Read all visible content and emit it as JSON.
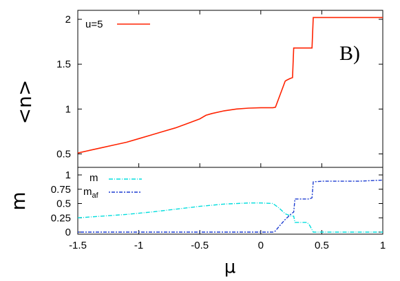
{
  "colors": {
    "n_line": "#ff2200",
    "m_line": "#00dddd",
    "maf_line": "#1a3ad0",
    "frame": "#000000"
  },
  "chart_data": [
    {
      "type": "line",
      "panel_tag": "B)",
      "ylabel": "<n>",
      "xlim": [
        -1.5,
        1
      ],
      "ylim": [
        0.35,
        2.1
      ],
      "yticks": [
        0.5,
        1,
        1.5,
        2
      ],
      "ytick_labels": [
        "0.5",
        "1",
        "1.5",
        "2"
      ],
      "legend": "top-left",
      "grid": false,
      "series": [
        {
          "name": "u=5",
          "color": "#ff2200",
          "x": [
            -1.5,
            -1.4,
            -1.3,
            -1.2,
            -1.1,
            -1.0,
            -0.9,
            -0.8,
            -0.7,
            -0.6,
            -0.5,
            -0.45,
            -0.4,
            -0.3,
            -0.2,
            -0.1,
            0.0,
            0.05,
            0.1,
            0.12,
            0.2,
            0.21,
            0.24,
            0.26,
            0.27,
            0.37,
            0.38,
            0.42,
            0.43,
            1.0
          ],
          "y": [
            0.51,
            0.54,
            0.57,
            0.6,
            0.63,
            0.67,
            0.71,
            0.75,
            0.79,
            0.84,
            0.89,
            0.93,
            0.95,
            0.98,
            1.0,
            1.01,
            1.015,
            1.015,
            1.015,
            1.02,
            1.31,
            1.32,
            1.34,
            1.35,
            1.68,
            1.68,
            1.68,
            1.68,
            2.02,
            2.02
          ]
        }
      ]
    },
    {
      "type": "line",
      "xlabel": "μ",
      "ylabel": "m",
      "xlim": [
        -1.5,
        1
      ],
      "ylim": [
        0,
        1
      ],
      "xticks": [
        -1.5,
        -1,
        -0.5,
        0,
        0.5,
        1
      ],
      "xtick_labels": [
        "-1.5",
        "-1",
        "-0.5",
        "0",
        "0.5",
        "1"
      ],
      "yticks": [
        0,
        0.25,
        0.5,
        0.75,
        1
      ],
      "ytick_labels": [
        "0",
        "0.25",
        "0.5",
        "0.75",
        "1"
      ],
      "legend": "top-left",
      "grid": false,
      "series": [
        {
          "name": "m",
          "color": "#00dddd",
          "x": [
            -1.5,
            -1.3,
            -1.1,
            -0.9,
            -0.7,
            -0.5,
            -0.3,
            -0.1,
            0.0,
            0.1,
            0.15,
            0.2,
            0.25,
            0.27,
            0.28,
            0.3,
            0.38,
            0.4,
            0.43,
            1.0
          ],
          "y": [
            0.25,
            0.28,
            0.31,
            0.35,
            0.4,
            0.45,
            0.49,
            0.51,
            0.51,
            0.5,
            0.42,
            0.32,
            0.28,
            0.28,
            0.17,
            0.17,
            0.17,
            0.12,
            0.0,
            0.0
          ]
        },
        {
          "name": "m_af",
          "color": "#1a3ad0",
          "x": [
            -1.5,
            0.1,
            0.12,
            0.15,
            0.2,
            0.25,
            0.27,
            0.28,
            0.3,
            0.4,
            0.42,
            0.43,
            0.5,
            0.8,
            1.0
          ],
          "y": [
            0.0,
            0.0,
            0.02,
            0.1,
            0.22,
            0.32,
            0.35,
            0.58,
            0.58,
            0.58,
            0.6,
            0.88,
            0.89,
            0.89,
            0.91
          ]
        }
      ]
    }
  ]
}
